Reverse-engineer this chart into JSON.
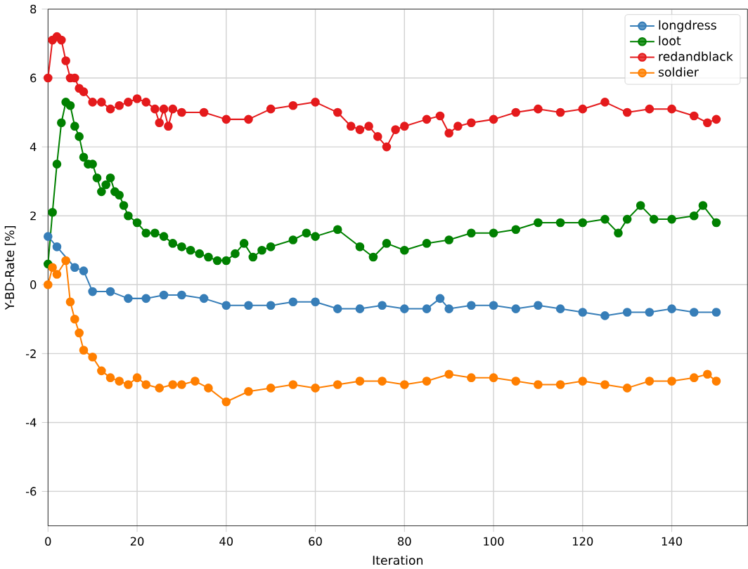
{
  "chart_data": {
    "type": "line",
    "xlabel": "Iteration",
    "ylabel": "Y-BD-Rate [%]",
    "xlim": [
      0,
      157
    ],
    "ylim": [
      -7,
      8
    ],
    "xticks": [
      0,
      20,
      40,
      60,
      80,
      100,
      120,
      140
    ],
    "yticks": [
      -6,
      -4,
      -2,
      0,
      2,
      4,
      6,
      8
    ],
    "grid": true,
    "legend": "top right",
    "marker": "circle",
    "line_style": "solid",
    "series": [
      {
        "name": "longdress",
        "color": "#377eb8",
        "x": [
          0,
          2,
          6,
          8,
          10,
          14,
          18,
          22,
          26,
          30,
          35,
          40,
          45,
          50,
          55,
          60,
          65,
          70,
          75,
          80,
          85,
          88,
          90,
          95,
          100,
          105,
          110,
          115,
          120,
          125,
          130,
          135,
          140,
          145,
          150
        ],
        "values": [
          1.4,
          1.1,
          0.5,
          0.4,
          -0.2,
          -0.2,
          -0.4,
          -0.4,
          -0.3,
          -0.3,
          -0.4,
          -0.6,
          -0.6,
          -0.6,
          -0.5,
          -0.5,
          -0.7,
          -0.7,
          -0.6,
          -0.7,
          -0.7,
          -0.4,
          -0.7,
          -0.6,
          -0.6,
          -0.7,
          -0.6,
          -0.7,
          -0.8,
          -0.9,
          -0.8,
          -0.8,
          -0.7,
          -0.8,
          -0.8
        ]
      },
      {
        "name": "loot",
        "color": "#008000",
        "x": [
          0,
          1,
          2,
          3,
          4,
          5,
          6,
          7,
          8,
          9,
          10,
          11,
          12,
          13,
          14,
          15,
          16,
          17,
          18,
          20,
          22,
          24,
          26,
          28,
          30,
          32,
          34,
          36,
          38,
          40,
          42,
          44,
          46,
          48,
          50,
          55,
          58,
          60,
          65,
          70,
          73,
          76,
          80,
          85,
          90,
          95,
          100,
          105,
          110,
          115,
          120,
          125,
          128,
          130,
          133,
          136,
          140,
          145,
          147,
          150
        ],
        "values": [
          0.6,
          2.1,
          3.5,
          4.7,
          5.3,
          5.2,
          4.6,
          4.3,
          3.7,
          3.5,
          3.5,
          3.1,
          2.7,
          2.9,
          3.1,
          2.7,
          2.6,
          2.3,
          2.0,
          1.8,
          1.5,
          1.5,
          1.4,
          1.2,
          1.1,
          1.0,
          0.9,
          0.8,
          0.7,
          0.7,
          0.9,
          1.2,
          0.8,
          1.0,
          1.1,
          1.3,
          1.5,
          1.4,
          1.6,
          1.1,
          0.8,
          1.2,
          1.0,
          1.2,
          1.3,
          1.5,
          1.5,
          1.6,
          1.8,
          1.8,
          1.8,
          1.9,
          1.5,
          1.9,
          2.3,
          1.9,
          1.9,
          2.0,
          2.3,
          1.8
        ]
      },
      {
        "name": "redandblack",
        "color": "#e41a1c",
        "x": [
          0,
          1,
          2,
          3,
          4,
          5,
          6,
          7,
          8,
          10,
          12,
          14,
          16,
          18,
          20,
          22,
          24,
          25,
          26,
          27,
          28,
          30,
          35,
          40,
          45,
          50,
          55,
          60,
          65,
          68,
          70,
          72,
          74,
          76,
          78,
          80,
          85,
          88,
          90,
          92,
          95,
          100,
          105,
          110,
          115,
          120,
          125,
          130,
          135,
          140,
          145,
          148,
          150
        ],
        "values": [
          6.0,
          7.1,
          7.2,
          7.1,
          6.5,
          6.0,
          6.0,
          5.7,
          5.6,
          5.3,
          5.3,
          5.1,
          5.2,
          5.3,
          5.4,
          5.3,
          5.1,
          4.7,
          5.1,
          4.6,
          5.1,
          5.0,
          5.0,
          4.8,
          4.8,
          5.1,
          5.2,
          5.3,
          5.0,
          4.6,
          4.5,
          4.6,
          4.3,
          4.0,
          4.5,
          4.6,
          4.8,
          4.9,
          4.4,
          4.6,
          4.7,
          4.8,
          5.0,
          5.1,
          5.0,
          5.1,
          5.3,
          5.0,
          5.1,
          5.1,
          4.9,
          4.7,
          4.8
        ]
      },
      {
        "name": "soldier",
        "color": "#ff7f00",
        "x": [
          0,
          1,
          2,
          4,
          5,
          6,
          7,
          8,
          10,
          12,
          14,
          16,
          18,
          20,
          22,
          25,
          28,
          30,
          33,
          36,
          40,
          45,
          50,
          55,
          60,
          65,
          70,
          75,
          80,
          85,
          90,
          95,
          100,
          105,
          110,
          115,
          120,
          125,
          130,
          135,
          140,
          145,
          148,
          150
        ],
        "values": [
          0.0,
          0.5,
          0.3,
          0.7,
          -0.5,
          -1.0,
          -1.4,
          -1.9,
          -2.1,
          -2.5,
          -2.7,
          -2.8,
          -2.9,
          -2.7,
          -2.9,
          -3.0,
          -2.9,
          -2.9,
          -2.8,
          -3.0,
          -3.4,
          -3.1,
          -3.0,
          -2.9,
          -3.0,
          -2.9,
          -2.8,
          -2.8,
          -2.9,
          -2.8,
          -2.6,
          -2.7,
          -2.7,
          -2.8,
          -2.9,
          -2.9,
          -2.8,
          -2.9,
          -3.0,
          -2.8,
          -2.8,
          -2.7,
          -2.6,
          -2.8
        ]
      }
    ]
  }
}
